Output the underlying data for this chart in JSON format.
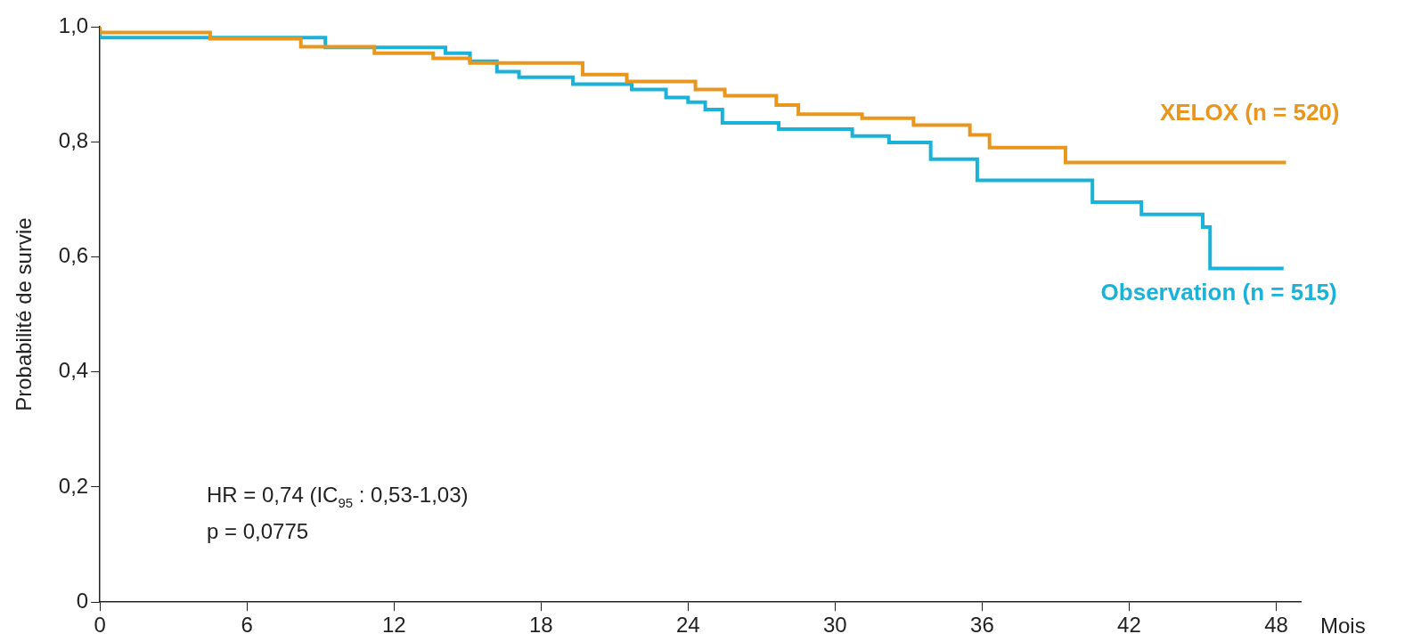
{
  "chart_data": {
    "type": "step",
    "xlabel": "Mois",
    "ylabel": "Probabilité de survie",
    "xlim": [
      0,
      49
    ],
    "xticks": [
      0,
      6,
      12,
      18,
      24,
      30,
      36,
      42,
      48
    ],
    "ylim": [
      0,
      1
    ],
    "yticks": [
      {
        "value": 0,
        "label": "0"
      },
      {
        "value": 0.2,
        "label": "0,2"
      },
      {
        "value": 0.4,
        "label": "0,4"
      },
      {
        "value": 0.6,
        "label": "0,6"
      },
      {
        "value": 0.8,
        "label": "0,8"
      },
      {
        "value": 1,
        "label": "1,0"
      }
    ],
    "grid": false,
    "legend": false,
    "marker": "none",
    "line_style": "solid",
    "series": [
      {
        "name": "XELOX (n = 520)",
        "color": "#e8961e",
        "x": [
          0,
          4.5,
          8.2,
          11.2,
          13.6,
          15.1,
          19.7,
          21.5,
          24.3,
          25.5,
          27.6,
          28.5,
          31.1,
          33.2,
          35.5,
          36.3,
          39.4,
          44.6,
          48.4
        ],
        "values": [
          1.0,
          0.99,
          0.979,
          0.965,
          0.954,
          0.945,
          0.937,
          0.917,
          0.905,
          0.891,
          0.88,
          0.864,
          0.848,
          0.841,
          0.829,
          0.812,
          0.79,
          0.764,
          0.764
        ]
      },
      {
        "name": "Observation (n = 515)",
        "color": "#1ab2d8",
        "x": [
          0,
          9.2,
          14.1,
          15.1,
          16.2,
          17.1,
          19.3,
          21.7,
          23.1,
          24.0,
          24.7,
          25.4,
          27.7,
          30.7,
          32.2,
          33.9,
          35.8,
          40.5,
          42.5,
          45.0,
          45.3,
          47.3,
          48.3
        ],
        "values": [
          0.995,
          0.981,
          0.964,
          0.954,
          0.94,
          0.922,
          0.912,
          0.9,
          0.891,
          0.877,
          0.869,
          0.856,
          0.833,
          0.822,
          0.81,
          0.799,
          0.77,
          0.733,
          0.695,
          0.674,
          0.652,
          0.58,
          0.58
        ]
      }
    ],
    "annotations": [
      "HR = 0,74 (IC$_{95}$ : 0,53-1,03)",
      "p = 0,0775"
    ]
  }
}
